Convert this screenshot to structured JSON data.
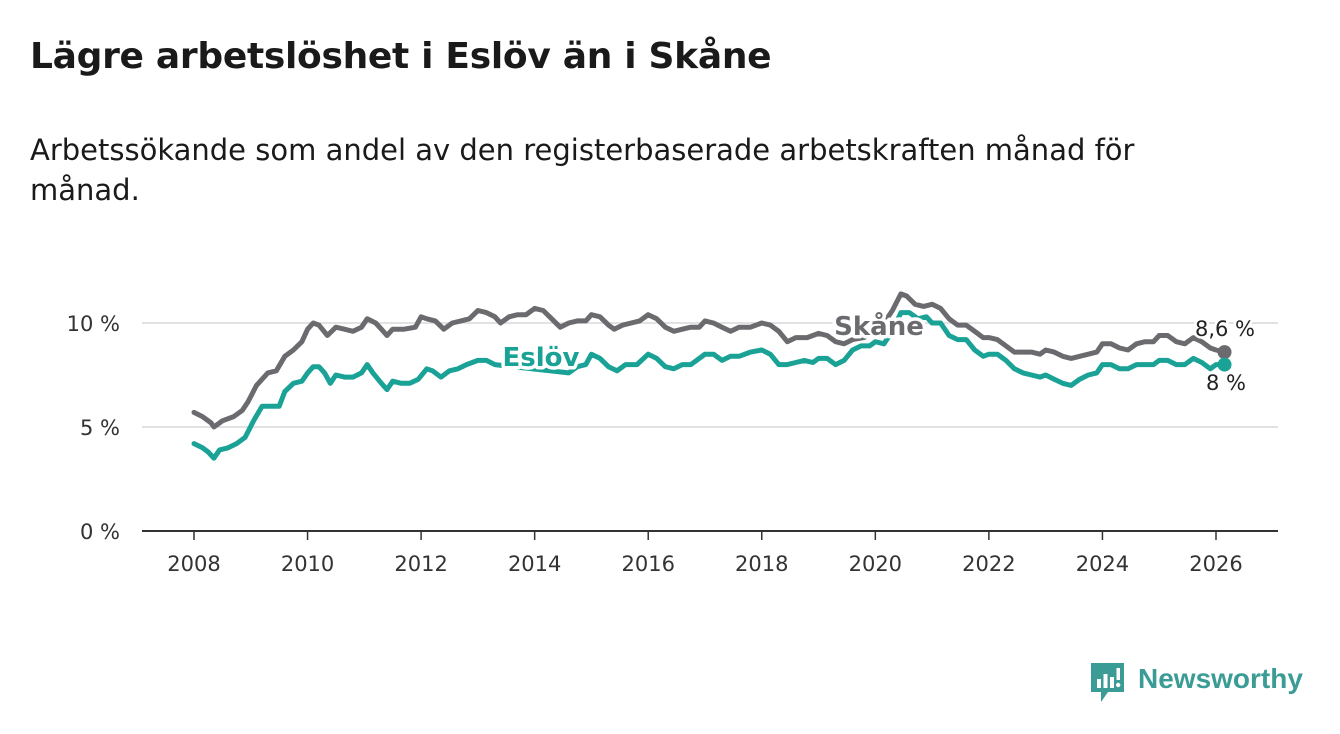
{
  "header": {
    "title": "Lägre arbetslöshet i Eslöv än i Skåne",
    "subtitle": "Arbetssökande som andel av den registerbaserade arbetskraften månad för månad."
  },
  "brand": {
    "name": "Newsworthy",
    "color": "#3a9c95"
  },
  "chart_data": {
    "type": "line",
    "title": "Lägre arbetslöshet i Eslöv än i Skåne",
    "subtitle": "Arbetssökande som andel av den registerbaserade arbetskraften månad för månad.",
    "xlabel": "",
    "ylabel": "",
    "xlim": [
      2007.1,
      2027.1
    ],
    "ylim": [
      0,
      12
    ],
    "grid": true,
    "x_ticks": [
      2008,
      2010,
      2012,
      2014,
      2016,
      2018,
      2020,
      2022,
      2024,
      2026
    ],
    "x_tick_labels": [
      "2008",
      "2010",
      "2012",
      "2014",
      "2016",
      "2018",
      "2020",
      "2022",
      "2024",
      "2026"
    ],
    "y_ticks": [
      0,
      5,
      10
    ],
    "y_tick_labels": [
      "0 %",
      "5 %",
      "10 %"
    ],
    "series": [
      {
        "name": "Skåne",
        "color": "#6b6b6f",
        "end_label": "8,6 %",
        "points": [
          [
            2008.0,
            5.7
          ],
          [
            2008.15,
            5.5
          ],
          [
            2008.3,
            5.2
          ],
          [
            2008.35,
            5.0
          ],
          [
            2008.5,
            5.3
          ],
          [
            2008.7,
            5.5
          ],
          [
            2008.85,
            5.8
          ],
          [
            2008.95,
            6.2
          ],
          [
            2009.1,
            7.0
          ],
          [
            2009.3,
            7.6
          ],
          [
            2009.45,
            7.7
          ],
          [
            2009.6,
            8.4
          ],
          [
            2009.75,
            8.7
          ],
          [
            2009.9,
            9.1
          ],
          [
            2010.0,
            9.7
          ],
          [
            2010.1,
            10.0
          ],
          [
            2010.2,
            9.9
          ],
          [
            2010.35,
            9.4
          ],
          [
            2010.5,
            9.8
          ],
          [
            2010.65,
            9.7
          ],
          [
            2010.8,
            9.6
          ],
          [
            2010.95,
            9.8
          ],
          [
            2011.05,
            10.2
          ],
          [
            2011.2,
            10.0
          ],
          [
            2011.3,
            9.7
          ],
          [
            2011.4,
            9.4
          ],
          [
            2011.5,
            9.7
          ],
          [
            2011.7,
            9.7
          ],
          [
            2011.9,
            9.8
          ],
          [
            2012.0,
            10.3
          ],
          [
            2012.1,
            10.2
          ],
          [
            2012.25,
            10.1
          ],
          [
            2012.4,
            9.7
          ],
          [
            2012.55,
            10.0
          ],
          [
            2012.7,
            10.1
          ],
          [
            2012.85,
            10.2
          ],
          [
            2013.0,
            10.6
          ],
          [
            2013.15,
            10.5
          ],
          [
            2013.3,
            10.3
          ],
          [
            2013.4,
            10.0
          ],
          [
            2013.55,
            10.3
          ],
          [
            2013.7,
            10.4
          ],
          [
            2013.85,
            10.4
          ],
          [
            2014.0,
            10.7
          ],
          [
            2014.15,
            10.6
          ],
          [
            2014.3,
            10.2
          ],
          [
            2014.45,
            9.8
          ],
          [
            2014.6,
            10.0
          ],
          [
            2014.75,
            10.1
          ],
          [
            2014.9,
            10.1
          ],
          [
            2015.0,
            10.4
          ],
          [
            2015.15,
            10.3
          ],
          [
            2015.3,
            9.9
          ],
          [
            2015.4,
            9.7
          ],
          [
            2015.55,
            9.9
          ],
          [
            2015.7,
            10.0
          ],
          [
            2015.85,
            10.1
          ],
          [
            2016.0,
            10.4
          ],
          [
            2016.15,
            10.2
          ],
          [
            2016.3,
            9.8
          ],
          [
            2016.45,
            9.6
          ],
          [
            2016.6,
            9.7
          ],
          [
            2016.75,
            9.8
          ],
          [
            2016.9,
            9.8
          ],
          [
            2017.0,
            10.1
          ],
          [
            2017.15,
            10.0
          ],
          [
            2017.3,
            9.8
          ],
          [
            2017.45,
            9.6
          ],
          [
            2017.6,
            9.8
          ],
          [
            2017.8,
            9.8
          ],
          [
            2018.0,
            10.0
          ],
          [
            2018.15,
            9.9
          ],
          [
            2018.3,
            9.6
          ],
          [
            2018.45,
            9.1
          ],
          [
            2018.6,
            9.3
          ],
          [
            2018.8,
            9.3
          ],
          [
            2019.0,
            9.5
          ],
          [
            2019.15,
            9.4
          ],
          [
            2019.3,
            9.1
          ],
          [
            2019.45,
            9.0
          ],
          [
            2019.6,
            9.2
          ],
          [
            2019.8,
            9.3
          ],
          [
            2020.0,
            9.7
          ],
          [
            2020.15,
            10.0
          ],
          [
            2020.3,
            10.6
          ],
          [
            2020.45,
            11.4
          ],
          [
            2020.55,
            11.3
          ],
          [
            2020.7,
            10.9
          ],
          [
            2020.85,
            10.8
          ],
          [
            2021.0,
            10.9
          ],
          [
            2021.15,
            10.7
          ],
          [
            2021.3,
            10.2
          ],
          [
            2021.45,
            9.9
          ],
          [
            2021.6,
            9.9
          ],
          [
            2021.75,
            9.6
          ],
          [
            2021.9,
            9.3
          ],
          [
            2022.0,
            9.3
          ],
          [
            2022.15,
            9.2
          ],
          [
            2022.3,
            8.9
          ],
          [
            2022.45,
            8.6
          ],
          [
            2022.6,
            8.6
          ],
          [
            2022.75,
            8.6
          ],
          [
            2022.9,
            8.5
          ],
          [
            2023.0,
            8.7
          ],
          [
            2023.15,
            8.6
          ],
          [
            2023.3,
            8.4
          ],
          [
            2023.45,
            8.3
          ],
          [
            2023.6,
            8.4
          ],
          [
            2023.75,
            8.5
          ],
          [
            2023.9,
            8.6
          ],
          [
            2024.0,
            9.0
          ],
          [
            2024.15,
            9.0
          ],
          [
            2024.3,
            8.8
          ],
          [
            2024.45,
            8.7
          ],
          [
            2024.6,
            9.0
          ],
          [
            2024.75,
            9.1
          ],
          [
            2024.9,
            9.1
          ],
          [
            2025.0,
            9.4
          ],
          [
            2025.15,
            9.4
          ],
          [
            2025.3,
            9.1
          ],
          [
            2025.45,
            9.0
          ],
          [
            2025.6,
            9.3
          ],
          [
            2025.75,
            9.1
          ],
          [
            2025.9,
            8.8
          ],
          [
            2026.0,
            8.7
          ],
          [
            2026.15,
            8.6
          ]
        ]
      },
      {
        "name": "Eslöv",
        "color": "#19a295",
        "end_label": "8 %",
        "points": [
          [
            2008.0,
            4.2
          ],
          [
            2008.15,
            4.0
          ],
          [
            2008.25,
            3.8
          ],
          [
            2008.35,
            3.5
          ],
          [
            2008.45,
            3.9
          ],
          [
            2008.6,
            4.0
          ],
          [
            2008.75,
            4.2
          ],
          [
            2008.9,
            4.5
          ],
          [
            2009.05,
            5.3
          ],
          [
            2009.2,
            6.0
          ],
          [
            2009.35,
            6.0
          ],
          [
            2009.5,
            6.0
          ],
          [
            2009.6,
            6.7
          ],
          [
            2009.75,
            7.1
          ],
          [
            2009.9,
            7.2
          ],
          [
            2010.0,
            7.6
          ],
          [
            2010.1,
            7.9
          ],
          [
            2010.2,
            7.9
          ],
          [
            2010.3,
            7.6
          ],
          [
            2010.4,
            7.1
          ],
          [
            2010.5,
            7.5
          ],
          [
            2010.65,
            7.4
          ],
          [
            2010.8,
            7.4
          ],
          [
            2010.95,
            7.6
          ],
          [
            2011.05,
            8.0
          ],
          [
            2011.15,
            7.6
          ],
          [
            2011.3,
            7.1
          ],
          [
            2011.4,
            6.8
          ],
          [
            2011.5,
            7.2
          ],
          [
            2011.65,
            7.1
          ],
          [
            2011.8,
            7.1
          ],
          [
            2011.95,
            7.3
          ],
          [
            2012.1,
            7.8
          ],
          [
            2012.2,
            7.7
          ],
          [
            2012.35,
            7.4
          ],
          [
            2012.5,
            7.7
          ],
          [
            2012.65,
            7.8
          ],
          [
            2012.8,
            8.0
          ],
          [
            2013.0,
            8.2
          ],
          [
            2013.15,
            8.2
          ],
          [
            2013.3,
            8.0
          ],
          [
            2014.6,
            7.6
          ],
          [
            2014.75,
            7.9
          ],
          [
            2014.9,
            8.0
          ],
          [
            2015.0,
            8.5
          ],
          [
            2015.15,
            8.3
          ],
          [
            2015.3,
            7.9
          ],
          [
            2015.45,
            7.7
          ],
          [
            2015.6,
            8.0
          ],
          [
            2015.8,
            8.0
          ],
          [
            2016.0,
            8.5
          ],
          [
            2016.15,
            8.3
          ],
          [
            2016.3,
            7.9
          ],
          [
            2016.45,
            7.8
          ],
          [
            2016.6,
            8.0
          ],
          [
            2016.75,
            8.0
          ],
          [
            2016.9,
            8.3
          ],
          [
            2017.0,
            8.5
          ],
          [
            2017.15,
            8.5
          ],
          [
            2017.3,
            8.2
          ],
          [
            2017.45,
            8.4
          ],
          [
            2017.6,
            8.4
          ],
          [
            2017.8,
            8.6
          ],
          [
            2018.0,
            8.7
          ],
          [
            2018.15,
            8.5
          ],
          [
            2018.3,
            8.0
          ],
          [
            2018.45,
            8.0
          ],
          [
            2018.6,
            8.1
          ],
          [
            2018.75,
            8.2
          ],
          [
            2018.9,
            8.1
          ],
          [
            2019.0,
            8.3
          ],
          [
            2019.15,
            8.3
          ],
          [
            2019.3,
            8.0
          ],
          [
            2019.45,
            8.2
          ],
          [
            2019.6,
            8.7
          ],
          [
            2019.75,
            8.9
          ],
          [
            2019.9,
            8.9
          ],
          [
            2020.0,
            9.1
          ],
          [
            2020.15,
            9.0
          ],
          [
            2020.3,
            9.6
          ],
          [
            2020.45,
            10.5
          ],
          [
            2020.6,
            10.5
          ],
          [
            2020.75,
            10.2
          ],
          [
            2020.9,
            10.3
          ],
          [
            2021.0,
            10.0
          ],
          [
            2021.15,
            10.0
          ],
          [
            2021.3,
            9.4
          ],
          [
            2021.45,
            9.2
          ],
          [
            2021.6,
            9.2
          ],
          [
            2021.75,
            8.7
          ],
          [
            2021.9,
            8.4
          ],
          [
            2022.0,
            8.5
          ],
          [
            2022.15,
            8.5
          ],
          [
            2022.3,
            8.2
          ],
          [
            2022.45,
            7.8
          ],
          [
            2022.6,
            7.6
          ],
          [
            2022.75,
            7.5
          ],
          [
            2022.9,
            7.4
          ],
          [
            2023.0,
            7.5
          ],
          [
            2023.15,
            7.3
          ],
          [
            2023.3,
            7.1
          ],
          [
            2023.45,
            7.0
          ],
          [
            2023.6,
            7.3
          ],
          [
            2023.75,
            7.5
          ],
          [
            2023.9,
            7.6
          ],
          [
            2024.0,
            8.0
          ],
          [
            2024.15,
            8.0
          ],
          [
            2024.3,
            7.8
          ],
          [
            2024.45,
            7.8
          ],
          [
            2024.6,
            8.0
          ],
          [
            2024.75,
            8.0
          ],
          [
            2024.9,
            8.0
          ],
          [
            2025.0,
            8.2
          ],
          [
            2025.15,
            8.2
          ],
          [
            2025.3,
            8.0
          ],
          [
            2025.45,
            8.0
          ],
          [
            2025.6,
            8.3
          ],
          [
            2025.75,
            8.1
          ],
          [
            2025.9,
            7.8
          ],
          [
            2026.0,
            8.0
          ],
          [
            2026.15,
            8.0
          ]
        ]
      }
    ]
  }
}
